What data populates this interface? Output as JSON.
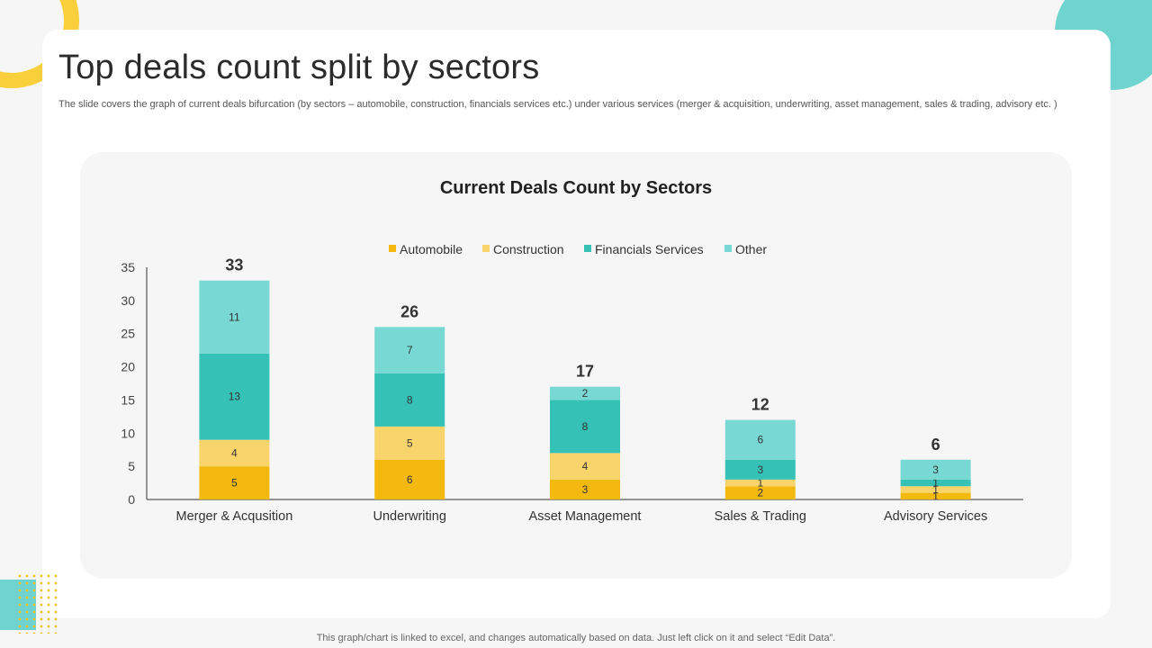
{
  "page": {
    "title": "Top deals count split by sectors",
    "subtitle": "The slide covers the graph of current deals bifurcation (by sectors – automobile, construction, financials services etc.) under various services (merger & acquisition, underwriting, asset management, sales & trading, advisory etc. )",
    "footer": "This graph/chart is linked to excel, and changes automatically based on data. Just left click on it and select “Edit Data”."
  },
  "colors": {
    "Automobile": "#f4b90f",
    "Construction": "#f9d46a",
    "Financials Services": "#36c1b6",
    "Other": "#78d8d3",
    "accent_yellow": "#f9cf3b",
    "accent_teal": "#6fd3cf"
  },
  "chart_data": {
    "type": "bar",
    "stacked": true,
    "title": "Current Deals Count by Sectors",
    "xlabel": "",
    "ylabel": "",
    "ylim": [
      0,
      35
    ],
    "yticks": [
      0,
      5,
      10,
      15,
      20,
      25,
      30,
      35
    ],
    "grid": false,
    "legend_position": "top",
    "categories": [
      "Merger & Acqusition",
      "Underwriting",
      "Asset Management",
      "Sales & Trading",
      "Advisory Services"
    ],
    "series": [
      {
        "name": "Automobile",
        "values": [
          5,
          6,
          3,
          2,
          1
        ]
      },
      {
        "name": "Construction",
        "values": [
          4,
          5,
          4,
          1,
          1
        ]
      },
      {
        "name": "Financials Services",
        "values": [
          13,
          8,
          8,
          3,
          1
        ]
      },
      {
        "name": "Other",
        "values": [
          11,
          7,
          2,
          6,
          3
        ]
      }
    ],
    "totals": [
      33,
      26,
      17,
      12,
      6
    ]
  }
}
